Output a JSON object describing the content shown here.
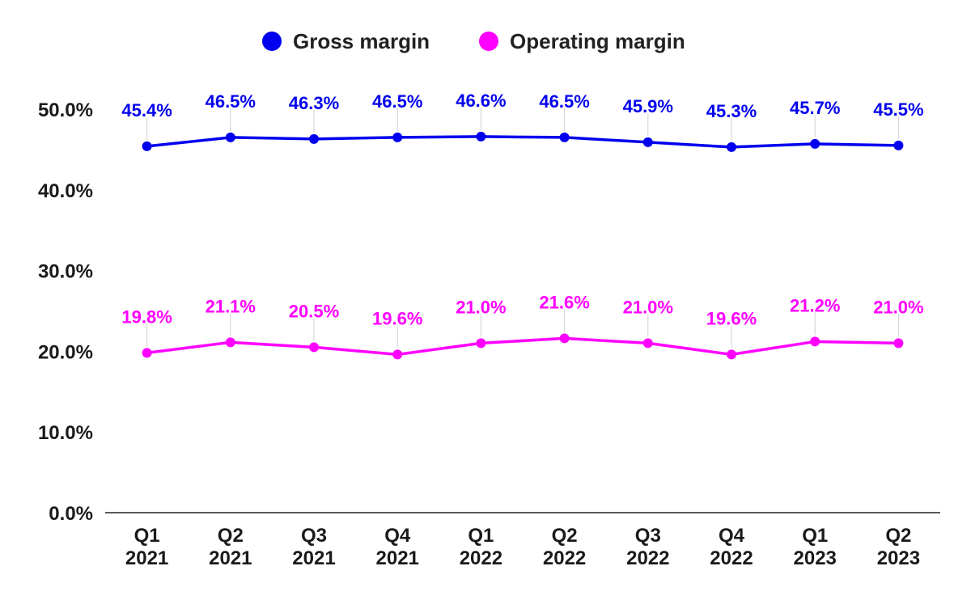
{
  "chart_data": {
    "type": "line",
    "categories": [
      [
        "Q1",
        "2021"
      ],
      [
        "Q2",
        "2021"
      ],
      [
        "Q3",
        "2021"
      ],
      [
        "Q4",
        "2021"
      ],
      [
        "Q1",
        "2022"
      ],
      [
        "Q2",
        "2022"
      ],
      [
        "Q3",
        "2022"
      ],
      [
        "Q4",
        "2022"
      ],
      [
        "Q1",
        "2023"
      ],
      [
        "Q2",
        "2023"
      ]
    ],
    "series": [
      {
        "name": "Gross margin",
        "color": "#0000ee",
        "values": [
          45.4,
          46.5,
          46.3,
          46.5,
          46.6,
          46.5,
          45.9,
          45.3,
          45.7,
          45.5
        ],
        "labels": [
          "45.4%",
          "46.5%",
          "46.3%",
          "46.5%",
          "46.6%",
          "46.5%",
          "45.9%",
          "45.3%",
          "45.7%",
          "45.5%"
        ]
      },
      {
        "name": "Operating margin",
        "color": "#ff00ff",
        "values": [
          19.8,
          21.1,
          20.5,
          19.6,
          21.0,
          21.6,
          21.0,
          19.6,
          21.2,
          21.0
        ],
        "labels": [
          "19.8%",
          "21.1%",
          "20.5%",
          "19.6%",
          "21.0%",
          "21.6%",
          "21.0%",
          "19.6%",
          "21.2%",
          "21.0%"
        ]
      }
    ],
    "y_ticks": [
      "0.0%",
      "10.0%",
      "20.0%",
      "30.0%",
      "40.0%",
      "50.0%"
    ],
    "y_tick_values": [
      0,
      10,
      20,
      30,
      40,
      50
    ],
    "ylim": [
      0,
      50
    ],
    "title": "",
    "xlabel": "",
    "ylabel": "",
    "grid": false,
    "legend_position": "top-center"
  }
}
